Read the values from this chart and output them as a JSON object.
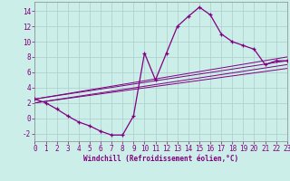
{
  "xlabel": "Windchill (Refroidissement éolien,°C)",
  "bg_color": "#cceee8",
  "grid_color": "#aacccc",
  "line_color": "#800080",
  "spine_color": "#888888",
  "hours": [
    0,
    1,
    2,
    3,
    4,
    5,
    6,
    7,
    8,
    9,
    10,
    11,
    12,
    13,
    14,
    15,
    16,
    17,
    18,
    19,
    20,
    21,
    22,
    23
  ],
  "temp": [
    2.5,
    2.0,
    1.2,
    0.3,
    -0.5,
    -1.0,
    -1.7,
    -2.2,
    -2.2,
    0.3,
    8.5,
    5.0,
    8.5,
    12.0,
    13.3,
    14.5,
    13.5,
    11.0,
    10.0,
    9.5,
    9.0,
    7.0,
    7.5,
    7.5
  ],
  "ref_lines": [
    {
      "x": [
        0,
        23
      ],
      "y": [
        2.5,
        7.5
      ]
    },
    {
      "x": [
        0,
        23
      ],
      "y": [
        2.0,
        7.0
      ]
    },
    {
      "x": [
        0,
        23
      ],
      "y": [
        2.5,
        8.0
      ]
    },
    {
      "x": [
        0,
        23
      ],
      "y": [
        2.0,
        6.5
      ]
    }
  ],
  "ylim": [
    -3.0,
    15.2
  ],
  "xlim": [
    0,
    23
  ],
  "yticks": [
    -2,
    0,
    2,
    4,
    6,
    8,
    10,
    12,
    14
  ],
  "xticks": [
    0,
    1,
    2,
    3,
    4,
    5,
    6,
    7,
    8,
    9,
    10,
    11,
    12,
    13,
    14,
    15,
    16,
    17,
    18,
    19,
    20,
    21,
    22,
    23
  ],
  "tick_fontsize": 5.5,
  "xlabel_fontsize": 5.5
}
